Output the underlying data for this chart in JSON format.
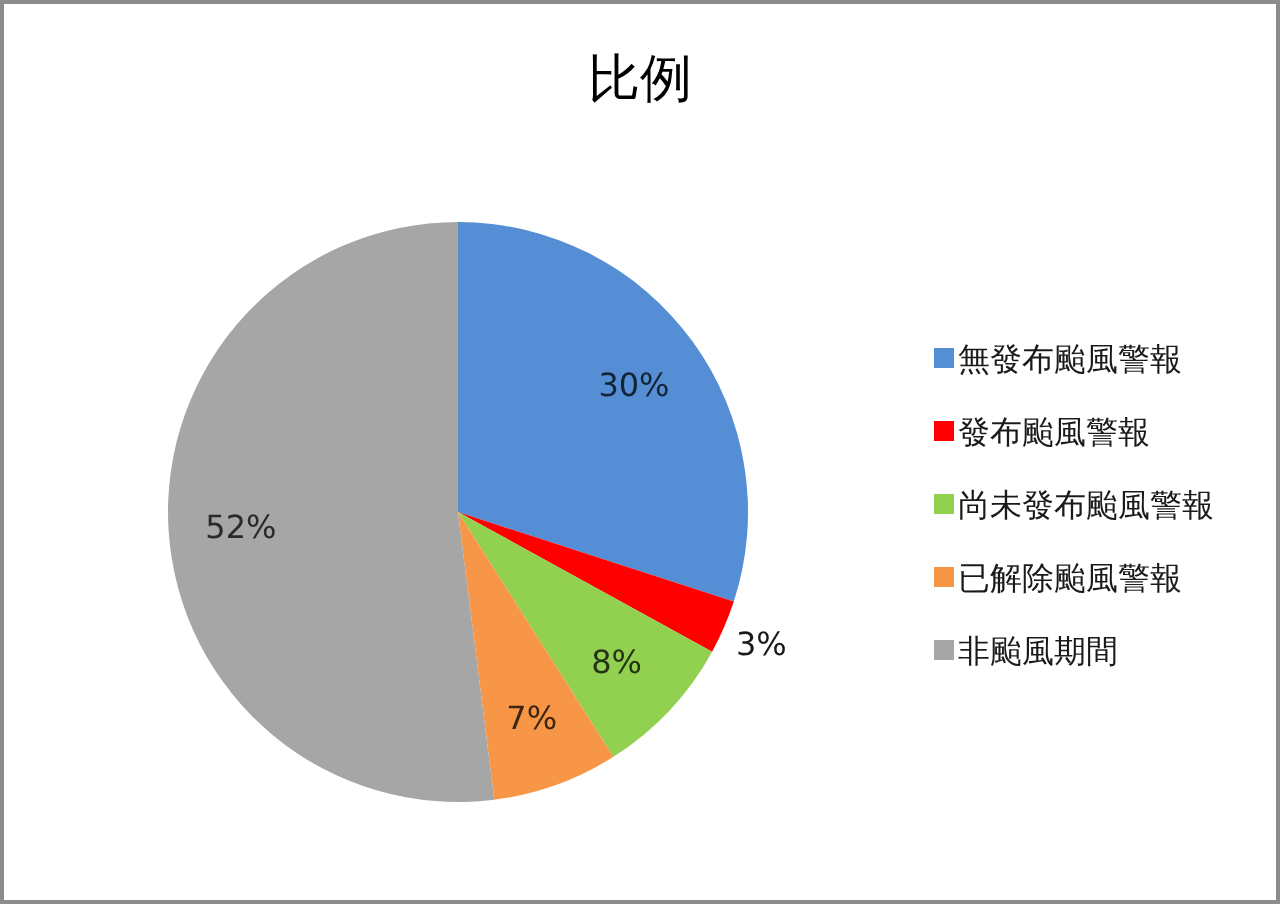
{
  "chart_data": {
    "type": "pie",
    "title": "比例",
    "categories": [
      "無發布颱風警報",
      "發布颱風警報",
      "尚未發布颱風警報",
      "已解除颱風警報",
      "非颱風期間"
    ],
    "values": [
      30,
      3,
      8,
      7,
      52
    ],
    "colors": [
      "#558ed5",
      "#ff0000",
      "#92d050",
      "#f79646",
      "#a6a6a6"
    ],
    "value_labels": [
      "30%",
      "3%",
      "8%",
      "7%",
      "52%"
    ],
    "legend": "right"
  }
}
